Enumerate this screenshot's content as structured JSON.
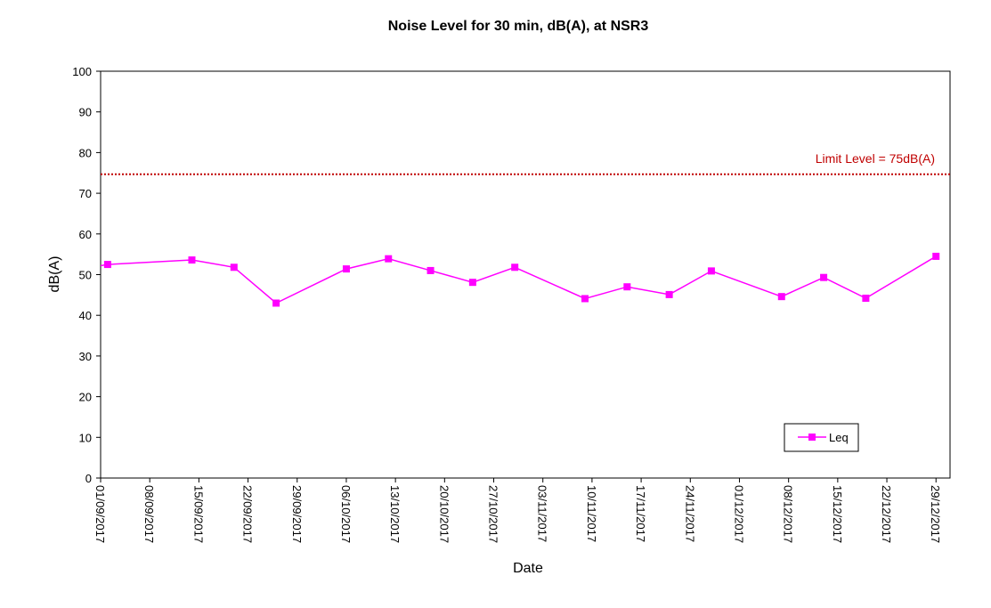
{
  "chart_data": {
    "type": "line",
    "title": "Noise Level for 30 min, dB(A), at NSR3",
    "xlabel": "Date",
    "ylabel": "dB(A)",
    "ylim": [
      0,
      100
    ],
    "yticks": [
      "0",
      "10",
      "20",
      "30",
      "40",
      "50",
      "60",
      "70",
      "80",
      "90",
      "100"
    ],
    "xlim": [
      "2017-09-01",
      "2017-12-31"
    ],
    "xticks": [
      "01/09/2017",
      "08/09/2017",
      "15/09/2017",
      "22/09/2017",
      "29/09/2017",
      "06/10/2017",
      "13/10/2017",
      "20/10/2017",
      "27/10/2017",
      "03/11/2017",
      "10/11/2017",
      "17/11/2017",
      "24/11/2017",
      "01/12/2017",
      "08/12/2017",
      "15/12/2017",
      "22/12/2017",
      "29/12/2017"
    ],
    "grid": false,
    "legend_position": "bottom-right",
    "series": [
      {
        "name": "Leq",
        "color": "#ff00ff",
        "marker": "square",
        "lead_in": {
          "x": "2017-09-01",
          "y": 52.2
        },
        "points": [
          {
            "x": "2017-09-02",
            "y": 52.5
          },
          {
            "x": "2017-09-14",
            "y": 53.6
          },
          {
            "x": "2017-09-20",
            "y": 51.8
          },
          {
            "x": "2017-09-26",
            "y": 43.0
          },
          {
            "x": "2017-10-06",
            "y": 51.4
          },
          {
            "x": "2017-10-12",
            "y": 53.9
          },
          {
            "x": "2017-10-18",
            "y": 51.0
          },
          {
            "x": "2017-10-24",
            "y": 48.1
          },
          {
            "x": "2017-10-30",
            "y": 51.8
          },
          {
            "x": "2017-11-09",
            "y": 44.1
          },
          {
            "x": "2017-11-15",
            "y": 47.0
          },
          {
            "x": "2017-11-21",
            "y": 45.1
          },
          {
            "x": "2017-11-27",
            "y": 50.9
          },
          {
            "x": "2017-12-07",
            "y": 44.6
          },
          {
            "x": "2017-12-13",
            "y": 49.3
          },
          {
            "x": "2017-12-19",
            "y": 44.2
          },
          {
            "x": "2017-12-29",
            "y": 54.5
          }
        ]
      }
    ],
    "limit_line": {
      "value": 75,
      "label": "Limit Level = 75dB(A)",
      "color": "#c00000",
      "style": "dotted"
    }
  }
}
